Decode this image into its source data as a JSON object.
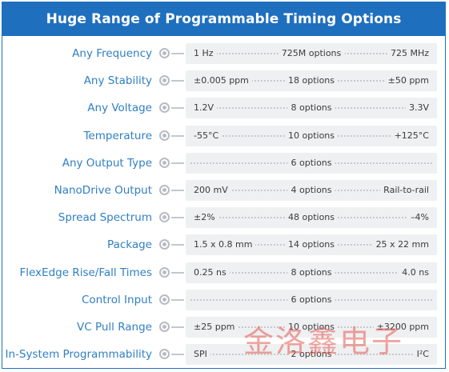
{
  "title": "Huge Range of Programmable Timing Options",
  "watermark": "金洛鑫电子",
  "rows": [
    {
      "label": "Any Frequency",
      "min": "1 Hz",
      "mid": "725M options",
      "max": "725 MHz"
    },
    {
      "label": "Any Stability",
      "min": "±0.005 ppm",
      "mid": "18 options",
      "max": "±50 ppm"
    },
    {
      "label": "Any Voltage",
      "min": "1.2V",
      "mid": "8 options",
      "max": "3.3V"
    },
    {
      "label": "Temperature",
      "min": "-55°C",
      "mid": "10 options",
      "max": "+125°C"
    },
    {
      "label": "Any Output Type",
      "min": "",
      "mid": "6 options",
      "max": ""
    },
    {
      "label": "NanoDrive Output",
      "min": "200 mV",
      "mid": "4 options",
      "max": "Rail-to-rail"
    },
    {
      "label": "Spread Spectrum",
      "min": "±2%",
      "mid": "48 options",
      "max": "–4%"
    },
    {
      "label": "Package",
      "min": "1.5 x 0.8 mm",
      "mid": "14 options",
      "max": "25 x 22 mm"
    },
    {
      "label": "FlexEdge Rise/Fall Times",
      "min": "0.25 ns",
      "mid": "8 options",
      "max": "4.0 ns"
    },
    {
      "label": "Control Input",
      "min": "",
      "mid": "6 options",
      "max": ""
    },
    {
      "label": "VC Pull Range",
      "min": "±25 ppm",
      "mid": "10 options",
      "max": "±3200 ppm"
    },
    {
      "label": "In-System Programmability",
      "min": "SPI",
      "mid": "2 options",
      "max": "I²C"
    }
  ]
}
